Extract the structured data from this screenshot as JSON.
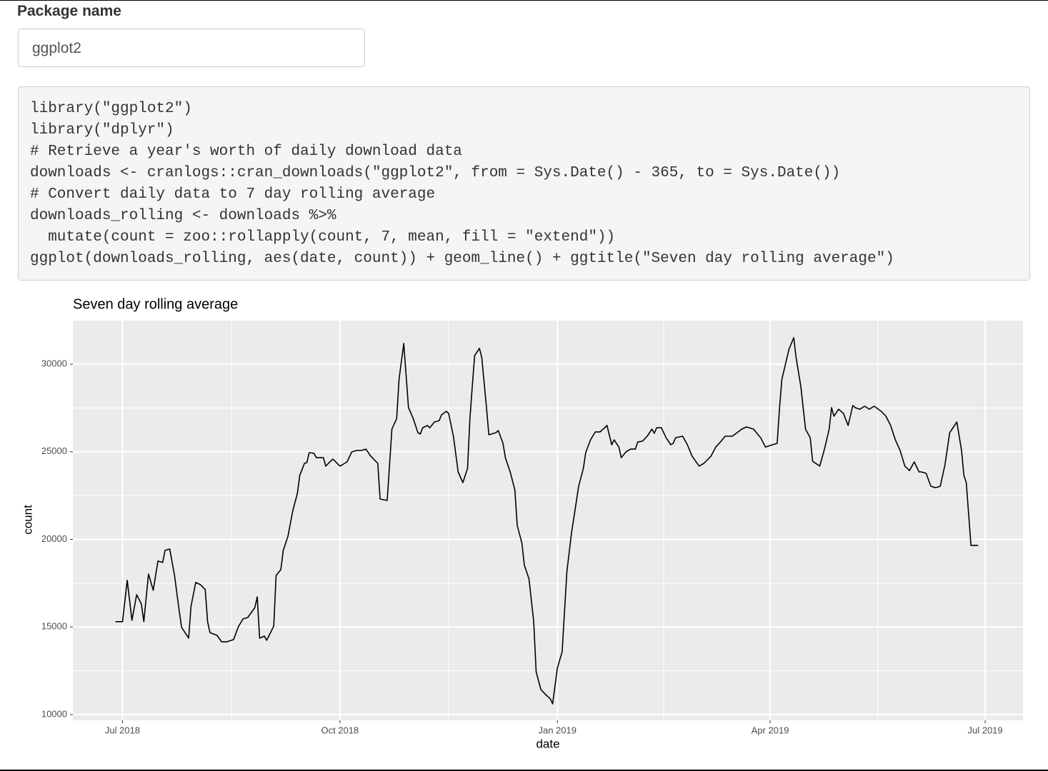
{
  "input": {
    "label": "Package name",
    "value": "ggplot2"
  },
  "code": {
    "lines": [
      "library(\"ggplot2\")",
      "library(\"dplyr\")",
      "# Retrieve a year's worth of daily download data",
      "downloads <- cranlogs::cran_downloads(\"ggplot2\", from = Sys.Date() - 365, to = Sys.Date())",
      "# Convert daily data to 7 day rolling average",
      "downloads_rolling <- downloads %>%",
      "  mutate(count = zoo::rollapply(count, 7, mean, fill = \"extend\"))",
      "ggplot(downloads_rolling, aes(date, count)) + geom_line() + ggtitle(\"Seven day rolling average\")"
    ]
  },
  "chart_data": {
    "type": "line",
    "title": "Seven day rolling average",
    "xlabel": "date",
    "ylabel": "count",
    "color": "#000000",
    "grid": true,
    "xlim": [
      -21,
      381
    ],
    "xticks": [
      {
        "value": 0,
        "label": "Jul 2018"
      },
      {
        "value": 92,
        "label": "Oct 2018"
      },
      {
        "value": 184,
        "label": "Jan 2019"
      },
      {
        "value": 274,
        "label": "Apr 2019"
      },
      {
        "value": 365,
        "label": "Jul 2019"
      }
    ],
    "ylim": [
      9670,
      32490
    ],
    "yticks": [
      10000,
      15000,
      20000,
      25000,
      30000
    ],
    "x": [
      -3,
      0,
      2,
      4,
      6,
      8,
      9,
      11,
      13,
      15,
      17,
      18,
      20,
      22,
      24,
      25,
      28,
      29,
      31,
      33,
      35,
      36,
      37,
      40,
      42,
      44,
      47,
      49,
      51,
      53,
      56,
      57,
      58,
      60,
      61,
      64,
      65,
      67,
      68,
      70,
      72,
      74,
      75,
      77,
      78,
      79,
      81,
      82,
      85,
      86,
      88,
      89,
      92,
      93,
      95,
      97,
      99,
      101,
      103,
      105,
      108,
      109,
      112,
      114,
      116,
      117,
      118,
      119,
      120,
      121,
      123,
      125,
      126,
      127,
      129,
      130,
      132,
      134,
      135,
      137,
      138,
      140,
      142,
      144,
      146,
      147,
      148,
      149,
      151,
      152,
      154,
      155,
      158,
      159,
      161,
      162,
      164,
      166,
      167,
      169,
      170,
      172,
      174,
      175,
      177,
      179,
      181,
      182,
      183,
      184,
      186,
      188,
      190,
      192,
      193,
      195,
      196,
      198,
      200,
      202,
      204,
      205,
      207,
      208,
      210,
      211,
      213,
      215,
      217,
      218,
      220,
      222,
      224,
      225,
      226,
      228,
      230,
      232,
      233,
      234,
      237,
      239,
      241,
      244,
      246,
      249,
      251,
      253,
      255,
      258,
      260,
      262,
      264,
      267,
      270,
      272,
      275,
      277,
      278,
      279,
      282,
      284,
      285,
      287,
      289,
      291,
      292,
      295,
      297,
      299,
      300,
      301,
      303,
      305,
      307,
      309,
      310,
      312,
      314,
      316,
      318,
      321,
      323,
      325,
      327,
      329,
      331,
      333,
      335,
      337,
      338,
      340,
      342,
      344,
      346,
      348,
      350,
      352,
      353,
      355,
      356,
      357,
      359,
      362
    ],
    "values": [
      15300,
      15300,
      17660,
      15380,
      16840,
      16310,
      15300,
      18020,
      17090,
      18760,
      18680,
      19370,
      19450,
      17940,
      15910,
      14970,
      14360,
      16190,
      17540,
      17410,
      17130,
      15300,
      14680,
      14520,
      14150,
      14150,
      14280,
      15010,
      15460,
      15540,
      16110,
      16720,
      14360,
      14480,
      14240,
      15050,
      17940,
      18270,
      19370,
      20180,
      21610,
      22630,
      23650,
      24340,
      24380,
      24950,
      24910,
      24660,
      24660,
      24180,
      24460,
      24580,
      24180,
      24260,
      24420,
      24990,
      25070,
      25070,
      25150,
      24750,
      24340,
      22300,
      22220,
      26290,
      26900,
      29140,
      30160,
      31180,
      29350,
      27520,
      26900,
      26090,
      26010,
      26370,
      26500,
      26370,
      26700,
      26780,
      27110,
      27310,
      27190,
      25890,
      23850,
      23240,
      24050,
      26900,
      28730,
      30490,
      30900,
      30370,
      27520,
      25970,
      26090,
      26210,
      25480,
      24660,
      23850,
      22830,
      20790,
      19780,
      18550,
      17740,
      15300,
      12440,
      11430,
      11140,
      10900,
      10610,
      11630,
      12650,
      13580,
      18150,
      20390,
      22140,
      23030,
      24050,
      24950,
      25680,
      26130,
      26130,
      26370,
      26500,
      25400,
      25680,
      25270,
      24660,
      24990,
      25150,
      25150,
      25560,
      25600,
      25890,
      26290,
      26050,
      26370,
      26370,
      25800,
      25400,
      25480,
      25800,
      25890,
      25400,
      24750,
      24180,
      24340,
      24750,
      25270,
      25560,
      25890,
      25890,
      26090,
      26290,
      26420,
      26290,
      25800,
      25270,
      25400,
      25480,
      27520,
      29140,
      30860,
      31510,
      30370,
      28730,
      26290,
      25800,
      24460,
      24180,
      25150,
      26290,
      27520,
      27030,
      27430,
      27190,
      26500,
      27640,
      27520,
      27430,
      27600,
      27430,
      27600,
      27310,
      27030,
      26500,
      25680,
      25070,
      24180,
      23930,
      24420,
      23850,
      23850,
      23770,
      23030,
      22950,
      23030,
      24260,
      26090,
      26500,
      26700,
      25070,
      23650,
      23240,
      19650,
      19650
    ]
  }
}
